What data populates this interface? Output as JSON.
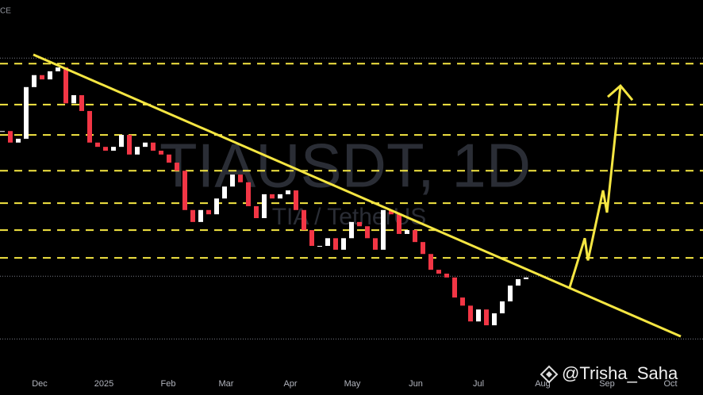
{
  "chart_data": {
    "type": "candlestick",
    "corner_text": "CE",
    "title": "TIAUSDT, 1D",
    "subtitle": "TIA / TetherUS",
    "watermark": "@Trisha_Saha",
    "time_labels": [
      "Dec",
      "2025",
      "Feb",
      "Mar",
      "Apr",
      "May",
      "Jun",
      "Jul",
      "Aug",
      "Sep",
      "Oct"
    ],
    "ylim": [
      0.66,
      9.3
    ],
    "up_color": "#ffffff",
    "down_color": "#f23645",
    "closes": [
      6.23,
      5.96,
      6.05,
      7.26,
      7.54,
      7.44,
      7.63,
      7.72,
      6.88,
      7.07,
      6.7,
      5.96,
      5.86,
      5.77,
      5.86,
      6.14,
      5.68,
      5.86,
      5.96,
      5.77,
      5.68,
      5.49,
      5.3,
      4.38,
      4.1,
      4.38,
      4.28,
      4.65,
      4.93,
      5.21,
      5.03,
      4.47,
      4.19,
      4.75,
      4.65,
      4.75,
      4.84,
      4.38,
      3.91,
      3.54,
      3.54,
      3.72,
      3.45,
      3.72,
      4.1,
      4.0,
      3.72,
      3.45,
      4.38,
      4.28,
      3.82,
      3.91,
      3.63,
      3.35,
      2.98,
      2.89,
      2.8,
      2.33,
      2.14,
      1.77,
      2.05,
      1.68,
      1.96,
      2.24,
      2.61,
      2.76,
      2.8
    ],
    "levels": [
      7.81,
      6.85,
      6.14,
      5.3,
      4.54,
      3.91,
      3.26
    ],
    "level_color": "#f5e642",
    "price_lines": [
      7.94,
      2.83,
      1.36
    ],
    "trendline": [
      8.02,
      1.42
    ],
    "projection": [
      2.57,
      3.72,
      3.2,
      4.84,
      4.32,
      7.29
    ]
  }
}
